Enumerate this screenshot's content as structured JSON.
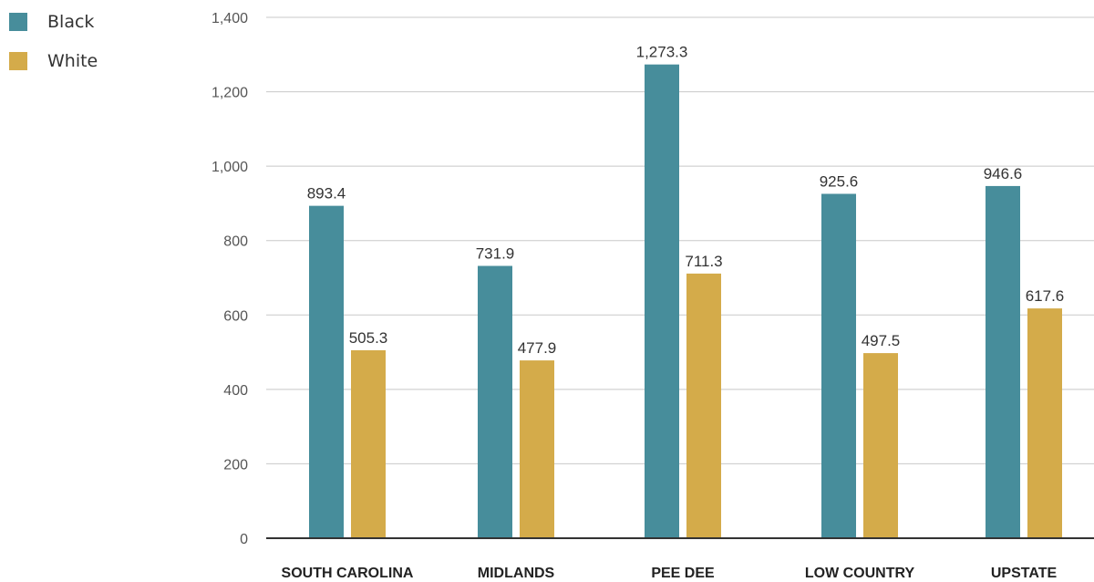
{
  "chart_data": {
    "type": "bar",
    "title": "",
    "xlabel": "",
    "ylabel": "",
    "categories": [
      "SOUTH CAROLINA",
      "MIDLANDS",
      "PEE DEE",
      "LOW COUNTRY",
      "UPSTATE"
    ],
    "series": [
      {
        "name": "Black",
        "color": "#478d9b",
        "values": [
          893.4,
          731.9,
          1273.3,
          925.6,
          946.6
        ],
        "labels": [
          "893.4",
          "731.9",
          "1,273.3",
          "925.6",
          "946.6"
        ]
      },
      {
        "name": "White",
        "color": "#d4ab4a",
        "values": [
          505.3,
          477.9,
          711.3,
          497.5,
          617.6
        ],
        "labels": [
          "505.3",
          "477.9",
          "711.3",
          "497.5",
          "617.6"
        ]
      }
    ],
    "ylim": [
      0,
      1400
    ],
    "yticks": [
      0,
      200,
      400,
      600,
      800,
      1000,
      1200,
      1400
    ],
    "ytick_labels": [
      "0",
      "200",
      "400",
      "600",
      "800",
      "1,000",
      "1,200",
      "1,400"
    ],
    "grid": true,
    "legend_position": "top-left"
  }
}
